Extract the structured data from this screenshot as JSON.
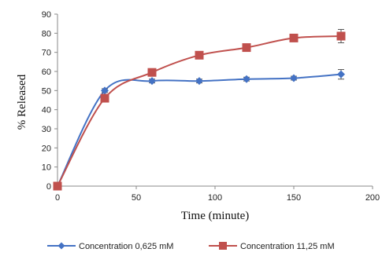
{
  "chart_data": {
    "type": "line",
    "title": "",
    "xlabel": "Time (minute)",
    "ylabel": "% Released",
    "xlim": [
      0,
      200
    ],
    "ylim": [
      0,
      90
    ],
    "xticks": [
      0,
      50,
      100,
      150,
      200
    ],
    "yticks": [
      0,
      10,
      20,
      30,
      40,
      50,
      60,
      70,
      80,
      90
    ],
    "grid": false,
    "legend_position": "bottom",
    "series": [
      {
        "name": "Concentration 0,625 mM",
        "color": "#4472c4",
        "marker": "diamond",
        "x": [
          0,
          30,
          60,
          90,
          120,
          150,
          180
        ],
        "y": [
          0,
          50,
          55,
          55,
          56,
          56.5,
          58.5
        ],
        "error": [
          0,
          1,
          1,
          1,
          1,
          1,
          2.5
        ]
      },
      {
        "name": "Concentration 11,25 mM",
        "color": "#c0504d",
        "marker": "square",
        "x": [
          0,
          30,
          60,
          90,
          120,
          150,
          180
        ],
        "y": [
          0,
          46,
          59.5,
          68.5,
          72.5,
          77.5,
          78.5
        ],
        "error": [
          0,
          2,
          1,
          1,
          1,
          1,
          3.5
        ]
      }
    ]
  }
}
